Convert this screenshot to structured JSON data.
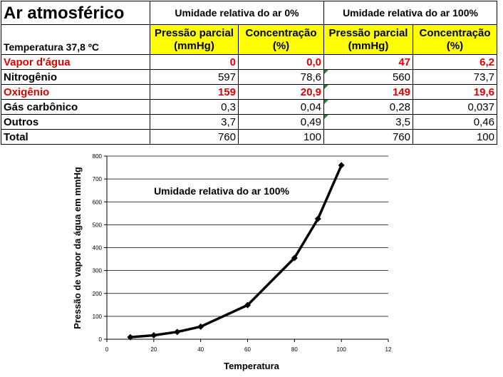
{
  "table": {
    "title": "Ar atmosférico",
    "temperature_label": "Temperatura 37,8 ºC",
    "condition_0": "Umidade relativa do ar 0%",
    "condition_100": "Umidade relativa do ar 100%",
    "pp_header_line1": "Pressão parcial",
    "pp_header_line2": "(mmHg)",
    "conc_header_line1": "Concentração",
    "conc_header_line2": "(%)",
    "rows": [
      {
        "name": "Vapor d'água",
        "pp0": "0",
        "c0": "0,0",
        "pp100": "47",
        "c100": "6,2",
        "highlight": true
      },
      {
        "name": "Nitrogênio",
        "pp0": "597",
        "c0": "78,6",
        "pp100": "560",
        "c100": "73,7",
        "highlight": false
      },
      {
        "name": "Oxigênio",
        "pp0": "159",
        "c0": "20,9",
        "pp100": "149",
        "c100": "19,6",
        "highlight": true
      },
      {
        "name": "Gás carbônico",
        "pp0": "0,3",
        "c0": "0,04",
        "pp100": "0,28",
        "c100": "0,037",
        "highlight": false
      },
      {
        "name": "Outros",
        "pp0": "3,7",
        "c0": "0,49",
        "pp100": "3,5",
        "c100": "0,46",
        "highlight": false
      },
      {
        "name": "Total",
        "pp0": "760",
        "c0": "100",
        "pp100": "760",
        "c100": "100",
        "highlight": false
      }
    ],
    "highlight_color": "#e00000",
    "header_fill": "#ffff00"
  },
  "chart_data": {
    "type": "line",
    "title": "",
    "annotation": "Umidade relativa do ar 100%",
    "xlabel": "Temperatura",
    "ylabel": "Pressão de vapor da água em mmHg",
    "xlim": [
      0,
      120
    ],
    "ylim": [
      0,
      800
    ],
    "x_ticks": [
      "0",
      "20",
      "40",
      "60",
      "80",
      "100",
      "12"
    ],
    "y_ticks": [
      "0",
      "100",
      "200",
      "300",
      "400",
      "500",
      "600",
      "700",
      "800"
    ],
    "grid": "horizontal",
    "series": [
      {
        "x": [
          10,
          20,
          30,
          40,
          60,
          80,
          90,
          100
        ],
        "y": [
          9,
          17,
          32,
          55,
          149,
          355,
          526,
          760
        ]
      }
    ]
  }
}
